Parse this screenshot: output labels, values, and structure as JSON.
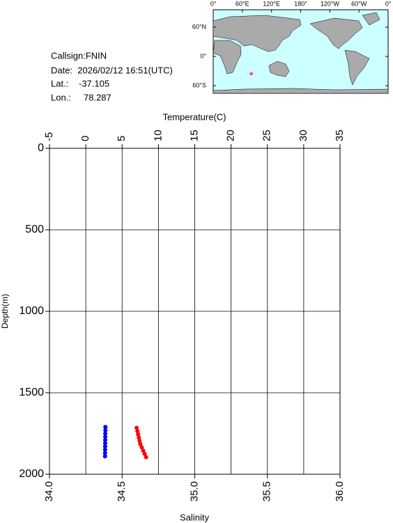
{
  "info": {
    "callsign": "Callsign:FNIN",
    "date": "Date:  2026/02/12 16:51(UTC)",
    "lat": {
      "label": "Lat.:",
      "value": -37.105
    },
    "lon": {
      "label": "Lon.:",
      "value": 78.287
    }
  },
  "map": {
    "lon_ticks": [
      {
        "value": 0,
        "label": "0°"
      },
      {
        "value": 60,
        "label": "60°E"
      },
      {
        "value": 120,
        "label": "120°E"
      },
      {
        "value": 180,
        "label": "180°"
      },
      {
        "value": 240,
        "label": "120°W"
      },
      {
        "value": 300,
        "label": "60°W"
      },
      {
        "value": 360,
        "label": "0°"
      }
    ],
    "lat_ticks": [
      {
        "value": 60,
        "label": "60°N"
      },
      {
        "value": 0,
        "label": "0°"
      },
      {
        "value": -60,
        "label": "60°S"
      }
    ]
  },
  "chart_data": {
    "type": "scatter",
    "x2_label": "Temperature(C)",
    "y_label": "Depth(m)",
    "x_label": "Salinity",
    "x2lim": [
      -5,
      35
    ],
    "x2ticks": [
      -5,
      0,
      5,
      10,
      15,
      20,
      25,
      30,
      35
    ],
    "xlim": [
      34,
      36
    ],
    "xticks": [
      {
        "value": 34,
        "label": "34.0"
      },
      34.5,
      {
        "value": 35,
        "label": "35.0"
      },
      35.5,
      {
        "value": 36,
        "label": "36.0"
      }
    ],
    "ylim": [
      0,
      2000
    ],
    "yticks": [
      0,
      500,
      1000,
      1500,
      2000
    ],
    "y_inverted": true,
    "grid": true,
    "series": [
      {
        "color": "#0000ff",
        "axis": "x2",
        "x": [
          2.7,
          2.7,
          2.68,
          2.68,
          2.67,
          2.67,
          2.66,
          2.66,
          2.65,
          2.65
        ],
        "y": [
          1710,
          1730,
          1750,
          1770,
          1790,
          1810,
          1830,
          1850,
          1870,
          1890
        ]
      },
      {
        "color": "#ff0000",
        "x": [
          34.6,
          34.605,
          34.61,
          34.615,
          34.62,
          34.625,
          34.635,
          34.645,
          34.655,
          34.665
        ],
        "y": [
          1715,
          1735,
          1755,
          1775,
          1795,
          1815,
          1835,
          1855,
          1875,
          1895
        ]
      }
    ]
  }
}
